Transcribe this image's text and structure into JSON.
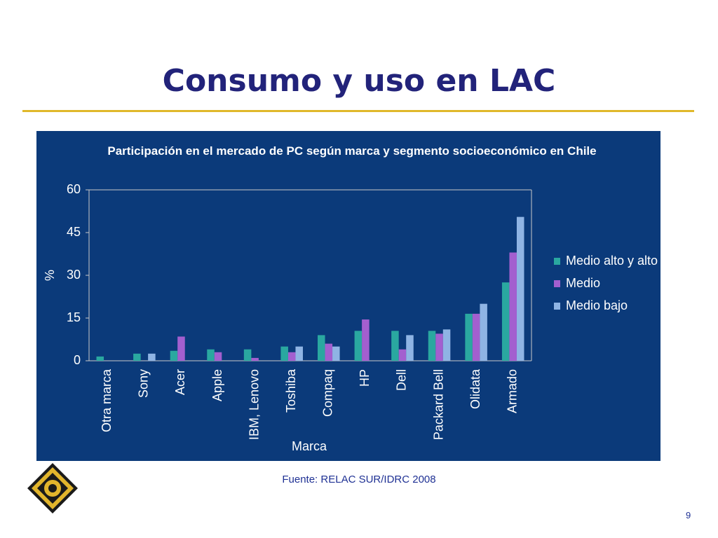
{
  "title": "Consumo y uso en LAC",
  "chart_data": {
    "type": "bar",
    "title": "Participación en el mercado de PC según marca y segmento socioeconómico en Chile",
    "xlabel": "Marca",
    "ylabel": "%",
    "categories": [
      "Otra marca",
      "Sony",
      "Acer",
      "Apple",
      "IBM, Lenovo",
      "Toshiba",
      "Compaq",
      "HP",
      "Dell",
      "Packard Bell",
      "Olidata",
      "Armado"
    ],
    "series": [
      {
        "name": "Medio alto y alto",
        "color": "#2aa8a0",
        "values": [
          1.5,
          2.5,
          3.5,
          4,
          4,
          5,
          9,
          10.5,
          10.5,
          10.5,
          16.5,
          27.5
        ]
      },
      {
        "name": "Medio",
        "color": "#a35fcf",
        "values": [
          0,
          0,
          8.5,
          3,
          1,
          3,
          6,
          14.5,
          4,
          9.5,
          16.5,
          38
        ]
      },
      {
        "name": "Medio bajo",
        "color": "#8fb4e4",
        "values": [
          0,
          2.5,
          0,
          0,
          0,
          5,
          5,
          0,
          9,
          11,
          20,
          50.5
        ]
      }
    ],
    "ylim": [
      0,
      60
    ],
    "yticks": [
      0,
      15,
      30,
      45,
      60
    ]
  },
  "source": "Fuente: RELAC SUR/IDRC 2008",
  "page_number": "9"
}
